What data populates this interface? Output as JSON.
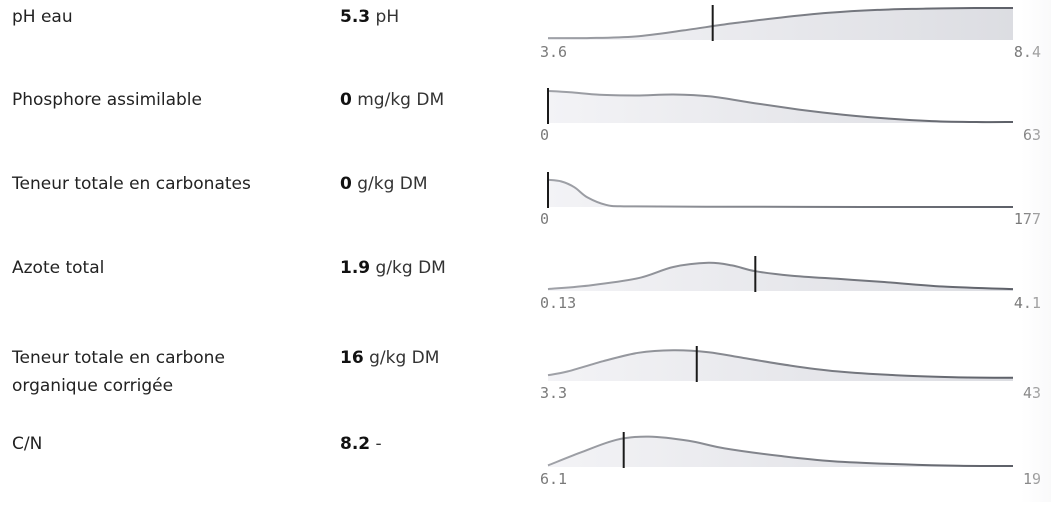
{
  "rows": [
    {
      "label": "pH eau",
      "value": "5.3",
      "unit": "pH",
      "min_label": "3.6",
      "max_label": "8.4"
    },
    {
      "label": "Phosphore assimilable",
      "value": "0",
      "unit": "mg/kg DM",
      "min_label": "0",
      "max_label": "63"
    },
    {
      "label": "Teneur totale en carbonates",
      "value": "0",
      "unit": "g/kg DM",
      "min_label": "0",
      "max_label": "177"
    },
    {
      "label": "Azote total",
      "value": "1.9",
      "unit": "g/kg DM",
      "min_label": "0.13",
      "max_label": "4.1"
    },
    {
      "label": "Teneur totale en carbone organique corrigée",
      "value": "16",
      "unit": "g/kg DM",
      "min_label": "3.3",
      "max_label": "43"
    },
    {
      "label": "C/N",
      "value": "8.2",
      "unit": "-",
      "min_label": "6.1",
      "max_label": "19"
    }
  ],
  "chart_data": [
    {
      "type": "area",
      "series_kind": "density",
      "xlim": [
        3.6,
        8.4
      ],
      "marker": 5.3,
      "density": [
        [
          3.6,
          0.06
        ],
        [
          4.0,
          0.06
        ],
        [
          4.5,
          0.11
        ],
        [
          5.0,
          0.3
        ],
        [
          5.5,
          0.52
        ],
        [
          6.0,
          0.7
        ],
        [
          6.5,
          0.85
        ],
        [
          7.0,
          0.94
        ],
        [
          7.5,
          0.98
        ],
        [
          8.0,
          1.0
        ],
        [
          8.4,
          1.0
        ]
      ]
    },
    {
      "type": "area",
      "series_kind": "density",
      "xlim": [
        0,
        63
      ],
      "marker": 0,
      "density": [
        [
          0,
          1.0
        ],
        [
          3,
          0.96
        ],
        [
          7,
          0.88
        ],
        [
          12,
          0.86
        ],
        [
          17,
          0.89
        ],
        [
          22,
          0.83
        ],
        [
          28,
          0.62
        ],
        [
          34,
          0.42
        ],
        [
          40,
          0.26
        ],
        [
          46,
          0.14
        ],
        [
          52,
          0.06
        ],
        [
          58,
          0.03
        ],
        [
          63,
          0.03
        ]
      ]
    },
    {
      "type": "area",
      "series_kind": "density",
      "xlim": [
        0,
        177
      ],
      "marker": 0,
      "density": [
        [
          0,
          0.85
        ],
        [
          5,
          0.8
        ],
        [
          10,
          0.62
        ],
        [
          15,
          0.3
        ],
        [
          22,
          0.07
        ],
        [
          30,
          0.02
        ],
        [
          60,
          0.01
        ],
        [
          120,
          0.0
        ],
        [
          177,
          0.0
        ]
      ]
    },
    {
      "type": "area",
      "series_kind": "density",
      "xlim": [
        0.13,
        4.1
      ],
      "marker": 1.9,
      "density": [
        [
          0.13,
          0.06
        ],
        [
          0.5,
          0.18
        ],
        [
          0.9,
          0.4
        ],
        [
          1.2,
          0.75
        ],
        [
          1.5,
          0.88
        ],
        [
          1.7,
          0.8
        ],
        [
          1.9,
          0.62
        ],
        [
          2.2,
          0.48
        ],
        [
          2.6,
          0.38
        ],
        [
          3.0,
          0.28
        ],
        [
          3.5,
          0.14
        ],
        [
          4.1,
          0.06
        ]
      ]
    },
    {
      "type": "area",
      "series_kind": "density",
      "xlim": [
        3.3,
        43
      ],
      "marker": 16,
      "density": [
        [
          3.3,
          0.18
        ],
        [
          5,
          0.3
        ],
        [
          8,
          0.62
        ],
        [
          11,
          0.88
        ],
        [
          14,
          0.96
        ],
        [
          17,
          0.9
        ],
        [
          20,
          0.72
        ],
        [
          24,
          0.48
        ],
        [
          28,
          0.3
        ],
        [
          33,
          0.18
        ],
        [
          38,
          0.12
        ],
        [
          43,
          0.1
        ]
      ]
    },
    {
      "type": "area",
      "series_kind": "density",
      "xlim": [
        6.1,
        19
      ],
      "marker": 8.2,
      "density": [
        [
          6.1,
          0.05
        ],
        [
          7.0,
          0.45
        ],
        [
          8.0,
          0.85
        ],
        [
          8.9,
          0.95
        ],
        [
          10,
          0.82
        ],
        [
          11,
          0.58
        ],
        [
          12.5,
          0.35
        ],
        [
          14,
          0.18
        ],
        [
          16,
          0.08
        ],
        [
          17.5,
          0.04
        ],
        [
          19,
          0.03
        ]
      ]
    }
  ]
}
